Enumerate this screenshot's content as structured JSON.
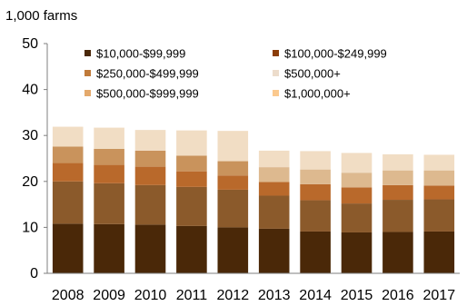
{
  "chart_data": {
    "type": "bar",
    "stacked": true,
    "ylabel": "1,000 farms",
    "ylim": [
      0,
      50
    ],
    "yticks": [
      0,
      10,
      20,
      30,
      40,
      50
    ],
    "grid": false,
    "legend_position": "top",
    "categories": [
      "2008",
      "2009",
      "2010",
      "2011",
      "2012",
      "2013",
      "2014",
      "2015",
      "2016",
      "2017"
    ],
    "series": [
      {
        "name": "$10,000-$99,999",
        "color": "#4a2808",
        "values": [
          10.8,
          10.7,
          10.6,
          10.3,
          10.0,
          9.7,
          9.1,
          8.9,
          9.0,
          9.1
        ]
      },
      {
        "name": "$100,000-$249,999",
        "color": "#8b5a2b",
        "values": [
          9.2,
          8.9,
          8.6,
          8.5,
          8.2,
          7.2,
          6.8,
          6.3,
          7.0,
          7.0
        ]
      },
      {
        "name": "$250,000-$499,999",
        "color": "#b9692b",
        "values": [
          4.0,
          4.0,
          4.0,
          3.4,
          3.1,
          3.0,
          3.5,
          3.5,
          3.2,
          3.0
        ]
      },
      {
        "name": "$500,000+",
        "color": "#c9935c",
        "values": [
          3.6,
          3.5,
          3.5,
          3.4,
          3.1,
          0,
          0,
          0,
          0,
          0
        ]
      },
      {
        "name": "$500,000-$999,999",
        "color": "#ddb98f",
        "values": [
          0,
          0,
          0,
          0,
          0,
          3.2,
          3.2,
          3.2,
          3.2,
          3.3
        ]
      },
      {
        "name": "$1,000,000+",
        "color": "#f1ddc4",
        "values": [
          4.3,
          4.6,
          4.5,
          5.5,
          6.6,
          3.6,
          4.0,
          4.3,
          3.5,
          3.4
        ]
      }
    ],
    "legend_items": [
      {
        "label": "$10,000-$99,999",
        "color": "#4a2808"
      },
      {
        "label": "$100,000-$249,999",
        "color": "#8b3d08"
      },
      {
        "label": "$250,000-$499,999",
        "color": "#c07a3a"
      },
      {
        "label": "$500,000+",
        "color": "#ecdccb"
      },
      {
        "label": "$500,000-$999,999",
        "color": "#e4a96c"
      },
      {
        "label": "$1,000,000+",
        "color": "#fbc98e"
      }
    ]
  }
}
